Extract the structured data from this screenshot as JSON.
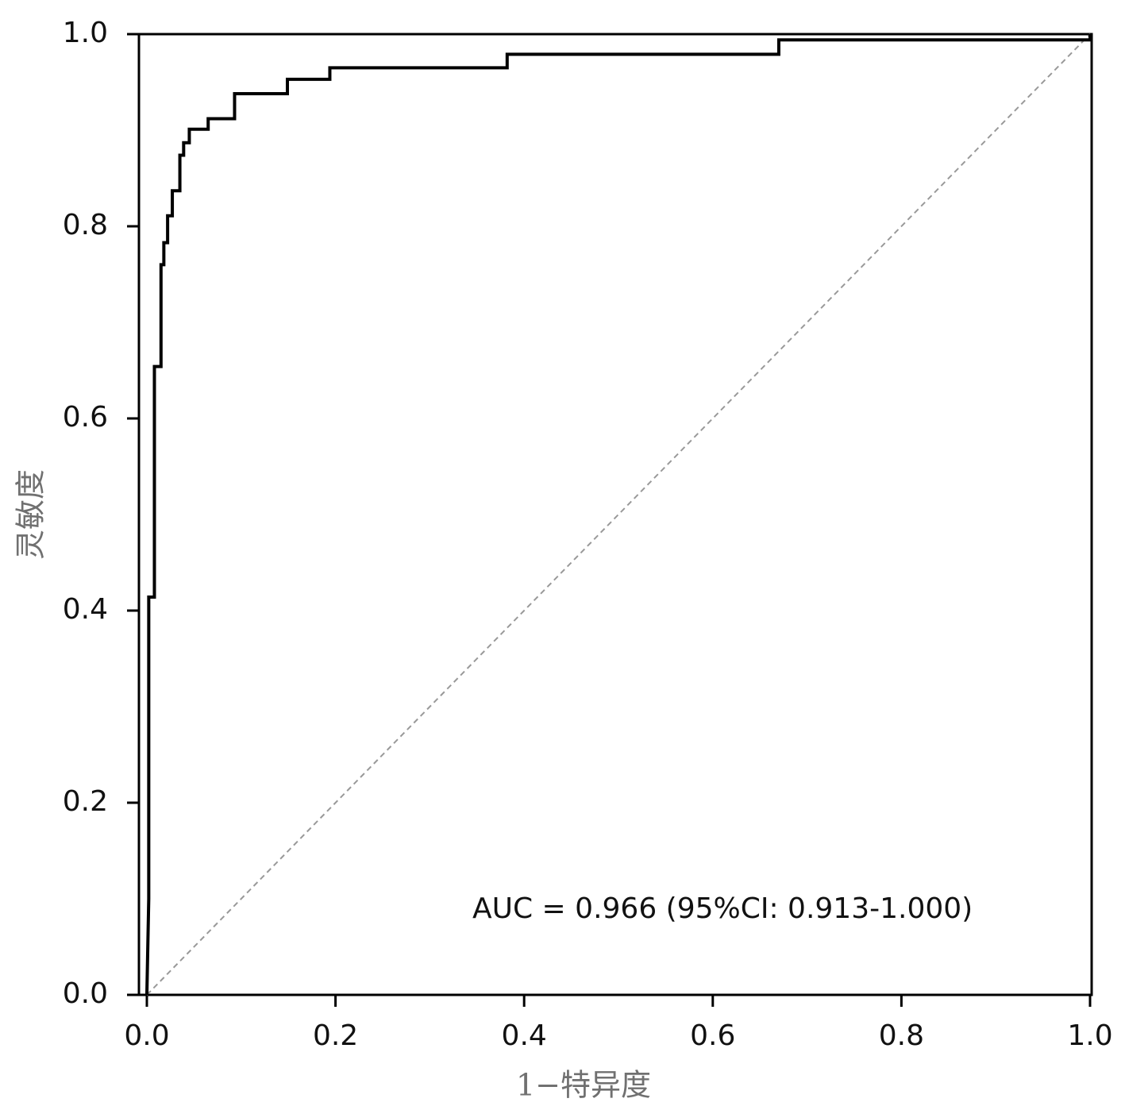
{
  "chart_data": {
    "type": "line",
    "xlabel": "1−特异度",
    "ylabel": "灵敏度",
    "annotation": "AUC = 0.966 (95%CI: 0.913-1.000)",
    "x": [
      0,
      0.002,
      0.002,
      0.008,
      0.008,
      0.015,
      0.015,
      0.018,
      0.018,
      0.022,
      0.022,
      0.027,
      0.027,
      0.035,
      0.035,
      0.039,
      0.039,
      0.045,
      0.045,
      0.065,
      0.065,
      0.093,
      0.093,
      0.149,
      0.149,
      0.194,
      0.194,
      0.382,
      0.382,
      0.67,
      0.67,
      1.0,
      1.0
    ],
    "series": [
      {
        "color": "#000000",
        "values": [
          0,
          0.1,
          0.414,
          0.414,
          0.654,
          0.654,
          0.76,
          0.76,
          0.783,
          0.783,
          0.811,
          0.811,
          0.837,
          0.837,
          0.874,
          0.874,
          0.887,
          0.887,
          0.901,
          0.901,
          0.912,
          0.912,
          0.938,
          0.938,
          0.953,
          0.953,
          0.965,
          0.965,
          0.979,
          0.979,
          0.994,
          0.994,
          1.0
        ]
      }
    ],
    "xlim": [
      -0.0084,
      1.0017
    ],
    "ylim": [
      0,
      1
    ],
    "xticks": [
      {
        "value": 0,
        "label": "0.0"
      },
      0.2,
      0.4,
      0.6,
      0.8,
      {
        "value": 1,
        "label": "1.0"
      }
    ],
    "yticks": [
      {
        "value": 0,
        "label": "0.0"
      },
      0.2,
      0.4,
      0.6,
      0.8,
      {
        "value": 1,
        "label": "1.0"
      }
    ],
    "diagonal": true,
    "diagonal_color": "#999999"
  }
}
